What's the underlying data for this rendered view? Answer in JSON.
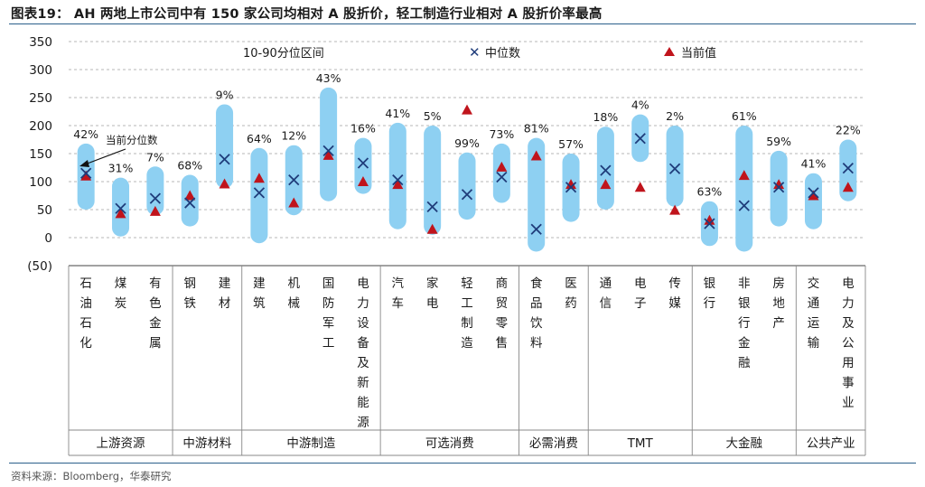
{
  "title": "图表19：  AH 两地上市公司中有 150 家公司均相对 A 股折价，轻工制造行业相对 A 股折价率最高",
  "source": "资料来源：Bloomberg，华泰研究",
  "colors": {
    "band": "#8ed0f2",
    "median": "#1f3c7a",
    "current": "#c0141c",
    "rule": "#2b5f8a",
    "grid": "#b7b7b7"
  },
  "chart_data": {
    "type": "range_band",
    "yticks": [
      "350",
      "300",
      "250",
      "200",
      "150",
      "100",
      "50",
      "0",
      "(50)"
    ],
    "ylim": [
      -50,
      350
    ],
    "legend": {
      "band": "10-90分位区间",
      "median": "中位数",
      "current": "当前值"
    },
    "annotation": "当前分位数",
    "industries": [
      {
        "name": "石油石化",
        "chars": [
          "石",
          "油",
          "石",
          "化"
        ],
        "low": 50,
        "high": 168,
        "median": 115,
        "current": 110,
        "pct": "42%"
      },
      {
        "name": "煤炭",
        "chars": [
          "煤",
          "炭"
        ],
        "low": 2,
        "high": 107,
        "median": 52,
        "current": 43,
        "pct": "31%"
      },
      {
        "name": "有色金属",
        "chars": [
          "有",
          "色",
          "金",
          "属"
        ],
        "low": 40,
        "high": 127,
        "median": 70,
        "current": 47,
        "pct": "7%"
      },
      {
        "name": "钢铁",
        "chars": [
          "钢",
          "铁"
        ],
        "low": 20,
        "high": 112,
        "median": 62,
        "current": 75,
        "pct": "68%"
      },
      {
        "name": "建材",
        "chars": [
          "建",
          "材"
        ],
        "low": 88,
        "high": 238,
        "median": 140,
        "current": 96,
        "pct": "9%"
      },
      {
        "name": "建筑",
        "chars": [
          "建",
          "筑"
        ],
        "low": -10,
        "high": 160,
        "median": 80,
        "current": 106,
        "pct": "64%"
      },
      {
        "name": "机械",
        "chars": [
          "机",
          "械"
        ],
        "low": 40,
        "high": 165,
        "median": 103,
        "current": 62,
        "pct": "12%"
      },
      {
        "name": "国防军工",
        "chars": [
          "国",
          "防",
          "军",
          "工"
        ],
        "low": 65,
        "high": 268,
        "median": 155,
        "current": 147,
        "pct": "43%"
      },
      {
        "name": "电力设备及新能源",
        "chars": [
          "电",
          "力",
          "设",
          "备",
          "及",
          "新",
          "能",
          "源"
        ],
        "low": 78,
        "high": 178,
        "median": 133,
        "current": 100,
        "pct": "16%"
      },
      {
        "name": "汽车",
        "chars": [
          "汽",
          "车"
        ],
        "low": 15,
        "high": 205,
        "median": 103,
        "current": 95,
        "pct": "41%"
      },
      {
        "name": "家电",
        "chars": [
          "家",
          "电"
        ],
        "low": 5,
        "high": 200,
        "median": 55,
        "current": 15,
        "pct": "5%"
      },
      {
        "name": "轻工制造",
        "chars": [
          "轻",
          "工",
          "制",
          "造"
        ],
        "low": 32,
        "high": 152,
        "median": 77,
        "current": 228,
        "pct": "99%"
      },
      {
        "name": "商贸零售",
        "chars": [
          "商",
          "贸",
          "零",
          "售"
        ],
        "low": 62,
        "high": 168,
        "median": 108,
        "current": 126,
        "pct": "73%"
      },
      {
        "name": "食品饮料",
        "chars": [
          "食",
          "品",
          "饮",
          "料"
        ],
        "low": -25,
        "high": 178,
        "median": 15,
        "current": 146,
        "pct": "81%"
      },
      {
        "name": "医药",
        "chars": [
          "医",
          "药"
        ],
        "low": 28,
        "high": 150,
        "median": 90,
        "current": 95,
        "pct": "57%"
      },
      {
        "name": "通信",
        "chars": [
          "通",
          "信"
        ],
        "low": 50,
        "high": 198,
        "median": 120,
        "current": 95,
        "pct": "18%"
      },
      {
        "name": "电子",
        "chars": [
          "电",
          "子"
        ],
        "low": 135,
        "high": 220,
        "median": 177,
        "current": 90,
        "pct": "4%"
      },
      {
        "name": "传媒",
        "chars": [
          "传",
          "媒"
        ],
        "low": 55,
        "high": 200,
        "median": 123,
        "current": 49,
        "pct": "2%"
      },
      {
        "name": "银行",
        "chars": [
          "银",
          "行"
        ],
        "low": -15,
        "high": 65,
        "median": 25,
        "current": 31,
        "pct": "63%"
      },
      {
        "name": "非银行金融",
        "chars": [
          "非",
          "银",
          "行",
          "金",
          "融"
        ],
        "low": -25,
        "high": 200,
        "median": 57,
        "current": 111,
        "pct": "61%"
      },
      {
        "name": "房地产",
        "chars": [
          "房",
          "地",
          "产"
        ],
        "low": 20,
        "high": 155,
        "median": 90,
        "current": 95,
        "pct": "59%"
      },
      {
        "name": "交通运输",
        "chars": [
          "交",
          "通",
          "运",
          "输"
        ],
        "low": 15,
        "high": 115,
        "median": 80,
        "current": 75,
        "pct": "41%"
      },
      {
        "name": "电力及公用事业",
        "chars": [
          "电",
          "力",
          "及",
          "公",
          "用",
          "事",
          "业"
        ],
        "low": 65,
        "high": 175,
        "median": 124,
        "current": 90,
        "pct": "22%"
      }
    ],
    "groups": [
      {
        "name": "上游资源",
        "start": 0,
        "end": 2
      },
      {
        "name": "中游材料",
        "start": 3,
        "end": 4
      },
      {
        "name": "中游制造",
        "start": 5,
        "end": 8
      },
      {
        "name": "可选消费",
        "start": 9,
        "end": 12
      },
      {
        "name": "必需消费",
        "start": 13,
        "end": 14
      },
      {
        "name": "TMT",
        "start": 15,
        "end": 17
      },
      {
        "name": "大金融",
        "start": 18,
        "end": 20
      },
      {
        "name": "公共产业",
        "start": 21,
        "end": 22
      }
    ]
  }
}
